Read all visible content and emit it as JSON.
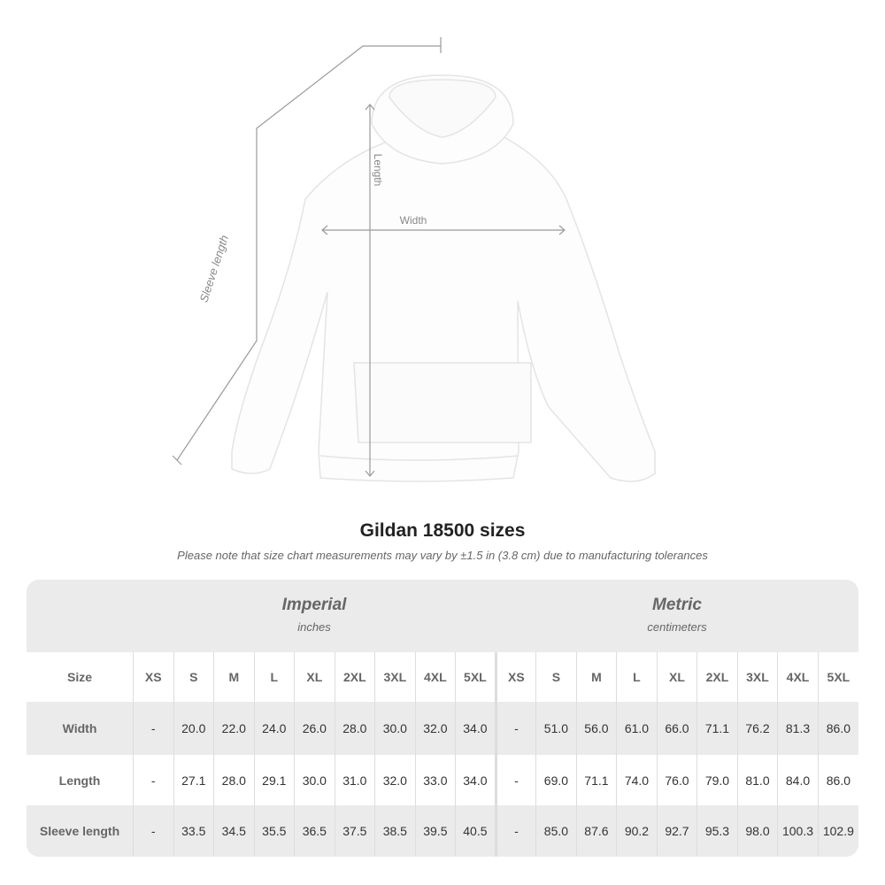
{
  "figure": {
    "labels": {
      "length": "Length",
      "width": "Width",
      "sleeve": "Sleeve length"
    }
  },
  "title": "Gildan 18500 sizes",
  "subtitle": "Please note that size chart measurements may vary by ±1.5 in (3.8 cm) due to manufacturing tolerances",
  "table": {
    "imperial": {
      "label": "Imperial",
      "unit": "inches"
    },
    "metric": {
      "label": "Metric",
      "unit": "centimeters"
    },
    "size_label": "Size",
    "sizes": [
      "XS",
      "S",
      "M",
      "L",
      "XL",
      "2XL",
      "3XL",
      "4XL",
      "5XL"
    ],
    "rows": [
      {
        "label": "Width",
        "imperial": [
          "-",
          "20.0",
          "22.0",
          "24.0",
          "26.0",
          "28.0",
          "30.0",
          "32.0",
          "34.0"
        ],
        "metric": [
          "-",
          "51.0",
          "56.0",
          "61.0",
          "66.0",
          "71.1",
          "76.2",
          "81.3",
          "86.0"
        ]
      },
      {
        "label": "Length",
        "imperial": [
          "-",
          "27.1",
          "28.0",
          "29.1",
          "30.0",
          "31.0",
          "32.0",
          "33.0",
          "34.0"
        ],
        "metric": [
          "-",
          "69.0",
          "71.1",
          "74.0",
          "76.0",
          "79.0",
          "81.0",
          "84.0",
          "86.0"
        ]
      },
      {
        "label": "Sleeve length",
        "imperial": [
          "-",
          "33.5",
          "34.5",
          "35.5",
          "36.5",
          "37.5",
          "38.5",
          "39.5",
          "40.5"
        ],
        "metric": [
          "-",
          "85.0",
          "87.6",
          "90.2",
          "92.7",
          "95.3",
          "98.0",
          "100.3",
          "102.9"
        ]
      }
    ]
  }
}
